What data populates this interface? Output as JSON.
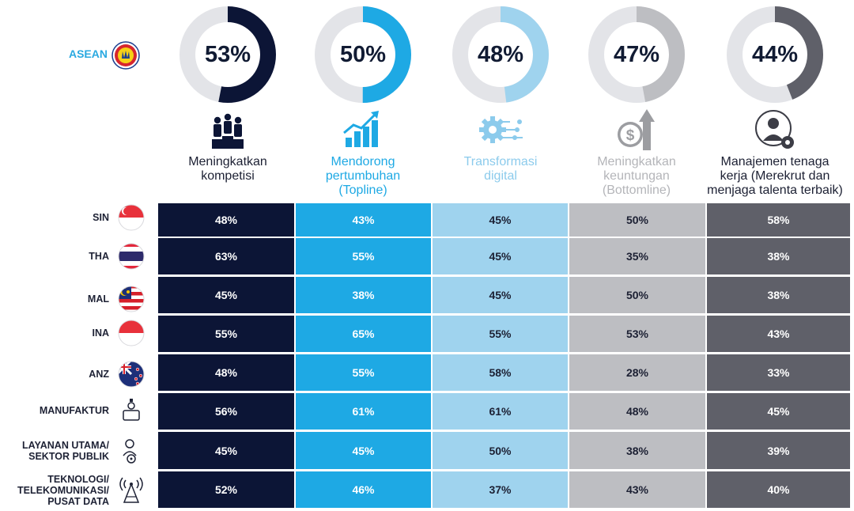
{
  "asean": {
    "label": "ASEAN",
    "icon": "asean-emblem-icon"
  },
  "columns": [
    {
      "key": "kompetisi",
      "label": "Meningkatkan kompetisi",
      "label_lines": [
        "Meningkatkan",
        "kompetisi"
      ],
      "donut_value": "53%",
      "percent": 53,
      "color": "#0c1536",
      "label_color": "#1c2033",
      "cell_text_color": "#ffffff",
      "icon": "people-podium-icon"
    },
    {
      "key": "topline",
      "label": "Mendorong pertumbuhan (Topline)",
      "label_lines": [
        "Mendorong",
        "pertumbuhan",
        "(Topline)"
      ],
      "donut_value": "50%",
      "percent": 50,
      "color": "#1ea9e4",
      "label_color": "#1ea9e4",
      "cell_text_color": "#ffffff",
      "icon": "growth-chart-icon"
    },
    {
      "key": "digital",
      "label": "Transformasi digital",
      "label_lines": [
        "Transformasi",
        "digital"
      ],
      "donut_value": "48%",
      "percent": 48,
      "color": "#9fd3ee",
      "label_color": "#8ccbec",
      "cell_text_color": "#1c2033",
      "icon": "digital-gear-icon"
    },
    {
      "key": "bottomline",
      "label": "Meningkatkan keuntungan (Bottomline)",
      "label_lines": [
        "Meningkatkan",
        "keuntungan",
        "(Bottomline)"
      ],
      "donut_value": "47%",
      "percent": 47,
      "color": "#bdbec2",
      "label_color": "#b4b5b9",
      "cell_text_color": "#1c2033",
      "icon": "dollar-arrow-icon"
    },
    {
      "key": "talenta",
      "label": "Manajemen tenaga kerja (Merekrut dan menjaga talenta terbaik)",
      "label_lines": [
        "Manajemen tenaga",
        "kerja (Merekrut dan",
        "menjaga talenta terbaik)"
      ],
      "donut_value": "44%",
      "percent": 44,
      "color": "#5f6069",
      "label_color": "#1c2033",
      "cell_text_color": "#ffffff",
      "icon": "person-gear-icon"
    }
  ],
  "chart_data": {
    "type": "table",
    "columns": [
      "Meningkatkan kompetisi",
      "Mendorong pertumbuhan (Topline)",
      "Transformasi digital",
      "Meningkatkan keuntungan (Bottomline)",
      "Manajemen tenaga kerja (Merekrut dan menjaga talenta terbaik)"
    ],
    "asean_values": [
      53,
      50,
      48,
      47,
      44
    ],
    "rows": [
      {
        "label": "SIN",
        "label_lines": [
          "SIN"
        ],
        "icon": "singapore-flag-icon",
        "values": [
          "48%",
          "43%",
          "45%",
          "50%",
          "58%"
        ]
      },
      {
        "label": "THA",
        "label_lines": [
          "THA"
        ],
        "icon": "thailand-flag-icon",
        "values": [
          "63%",
          "55%",
          "45%",
          "35%",
          "38%"
        ]
      },
      {
        "label": "MAL",
        "label_lines": [
          "MAL"
        ],
        "icon": "malaysia-flag-icon",
        "values": [
          "45%",
          "38%",
          "45%",
          "50%",
          "38%"
        ]
      },
      {
        "label": "INA",
        "label_lines": [
          "INA"
        ],
        "icon": "indonesia-flag-icon",
        "values": [
          "55%",
          "65%",
          "55%",
          "53%",
          "43%"
        ]
      },
      {
        "label": "ANZ",
        "label_lines": [
          "ANZ"
        ],
        "icon": "new-zealand-flag-icon",
        "values": [
          "48%",
          "55%",
          "58%",
          "28%",
          "33%"
        ]
      },
      {
        "label": "MANUFAKTUR",
        "label_lines": [
          "MANUFAKTUR"
        ],
        "icon": "factory-worker-icon",
        "values": [
          "56%",
          "61%",
          "61%",
          "48%",
          "45%"
        ]
      },
      {
        "label": "LAYANAN UTAMA/ SEKTOR PUBLIK",
        "label_lines": [
          "LAYANAN UTAMA/",
          "SEKTOR PUBLIK"
        ],
        "icon": "public-service-icon",
        "values": [
          "45%",
          "45%",
          "50%",
          "38%",
          "39%"
        ]
      },
      {
        "label": "TEKNOLOGI/ TELEKOMUNIKASI/ PUSAT DATA",
        "label_lines": [
          "TEKNOLOGI/",
          "TELEKOMUNIKASI/",
          "PUSAT DATA"
        ],
        "icon": "telecom-tower-icon",
        "values": [
          "52%",
          "46%",
          "37%",
          "43%",
          "40%"
        ]
      }
    ]
  }
}
